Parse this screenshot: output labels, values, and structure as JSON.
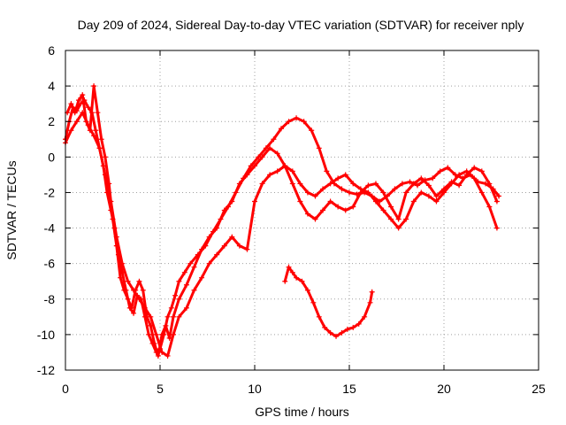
{
  "chart_data": {
    "type": "scatter",
    "title": "Day 209 of 2024, Sidereal Day-to-day VTEC variation (SDTVAR) for receiver nply",
    "xlabel": "GPS time / hours",
    "ylabel": "SDTVAR / TECUs",
    "xlim": [
      0,
      25
    ],
    "ylim": [
      -12,
      6
    ],
    "x_ticks": [
      0,
      5,
      10,
      15,
      20,
      25
    ],
    "x_tick_labels": [
      "0",
      "5",
      "10",
      "15",
      "20",
      "25"
    ],
    "y_ticks": [
      -12,
      -10,
      -8,
      -6,
      -4,
      -2,
      0,
      2,
      4,
      6
    ],
    "y_tick_labels": [
      "-12",
      "-10",
      "-8",
      "-6",
      "-4",
      "-2",
      "0",
      "2",
      "4",
      "6"
    ],
    "grid": true,
    "legend": "none",
    "marker": "+",
    "color": "#ff0000",
    "series": [
      {
        "name": "track-a",
        "x": [
          0.0,
          0.2,
          0.4,
          0.6,
          0.8,
          1.0,
          1.2,
          1.4,
          1.6,
          1.8,
          2.0,
          2.2,
          2.4,
          2.6,
          2.8,
          3.0,
          3.2,
          3.4,
          3.6,
          3.8,
          4.0,
          4.2,
          4.4,
          4.6,
          4.8,
          5.0,
          5.2,
          5.4,
          5.6,
          5.8,
          6.0,
          6.3,
          6.6,
          7.0,
          7.4,
          7.8,
          8.2,
          8.6,
          9.0,
          9.4,
          9.8,
          10.2,
          10.6,
          11.0,
          11.4,
          11.8,
          12.2,
          12.6,
          13.0,
          13.4,
          13.8,
          14.2,
          14.6,
          15.0,
          15.4,
          15.8,
          16.2,
          16.6,
          17.0,
          17.4,
          17.8,
          18.2,
          18.6,
          19.0,
          19.4,
          19.8,
          20.2,
          20.6,
          21.0,
          21.4,
          21.8,
          22.2,
          22.6,
          22.9
        ],
        "y": [
          1.0,
          2.0,
          2.8,
          2.6,
          3.0,
          3.2,
          2.8,
          2.5,
          1.5,
          0.5,
          -0.5,
          -2.0,
          -3.0,
          -4.0,
          -5.5,
          -6.5,
          -7.5,
          -8.5,
          -8.8,
          -7.8,
          -8.0,
          -9.0,
          -10.0,
          -10.5,
          -11.0,
          -10.8,
          -10.0,
          -9.0,
          -8.5,
          -7.8,
          -7.0,
          -6.5,
          -6.0,
          -5.5,
          -5.0,
          -4.2,
          -3.5,
          -2.8,
          -2.0,
          -1.2,
          -0.5,
          0.0,
          0.5,
          1.0,
          1.6,
          2.0,
          2.2,
          2.0,
          1.5,
          0.5,
          -0.8,
          -1.5,
          -1.8,
          -2.0,
          -2.1,
          -2.0,
          -2.2,
          -2.5,
          -2.2,
          -1.8,
          -1.5,
          -1.4,
          -1.6,
          -1.3,
          -1.2,
          -0.8,
          -0.6,
          -1.0,
          -1.2,
          -1.0,
          -1.4,
          -1.5,
          -1.8,
          -2.2
        ]
      },
      {
        "name": "track-b",
        "x": [
          0.1,
          0.3,
          0.5,
          0.7,
          0.9,
          1.1,
          1.3,
          1.5,
          1.7,
          1.9,
          2.1,
          2.3,
          2.5,
          2.7,
          2.9,
          3.1,
          3.3,
          3.5,
          3.7,
          3.9,
          4.1,
          4.3,
          4.5,
          4.7,
          4.9,
          5.1,
          5.3,
          5.5,
          5.7,
          6.0,
          6.4,
          6.8,
          7.2,
          7.6,
          8.0,
          8.4,
          8.8,
          9.2,
          9.6,
          10.0,
          10.4,
          10.8,
          11.2,
          11.6,
          12.0,
          12.4,
          12.8,
          13.2,
          13.6,
          14.0,
          14.4,
          14.8,
          15.2,
          15.6,
          16.0,
          16.4,
          16.8,
          17.2,
          17.6,
          18.0,
          18.4,
          18.8,
          19.2,
          19.6,
          20.0,
          20.4,
          20.8,
          21.2,
          21.6,
          22.0,
          22.4,
          22.8
        ],
        "y": [
          2.5,
          3.0,
          2.5,
          3.2,
          3.5,
          2.0,
          1.5,
          4.0,
          2.5,
          1.0,
          0.0,
          -1.5,
          -3.5,
          -5.0,
          -6.8,
          -7.5,
          -8.0,
          -8.5,
          -7.5,
          -7.0,
          -7.5,
          -9.0,
          -9.5,
          -10.5,
          -11.2,
          -10.0,
          -9.5,
          -10.2,
          -9.0,
          -8.0,
          -7.2,
          -6.2,
          -5.2,
          -4.5,
          -4.0,
          -3.0,
          -2.5,
          -1.5,
          -1.0,
          -0.5,
          0.0,
          0.5,
          0.2,
          -0.5,
          -1.5,
          -2.5,
          -3.2,
          -3.5,
          -3.0,
          -2.5,
          -2.8,
          -3.0,
          -2.8,
          -2.0,
          -1.6,
          -1.5,
          -2.0,
          -2.8,
          -3.5,
          -2.0,
          -1.5,
          -1.2,
          -1.6,
          -2.2,
          -1.8,
          -1.4,
          -1.6,
          -1.0,
          -0.6,
          -0.8,
          -1.5,
          -2.5
        ]
      },
      {
        "name": "track-c",
        "x": [
          0.0,
          0.3,
          0.6,
          0.9,
          1.2,
          1.5,
          1.8,
          2.1,
          2.4,
          2.7,
          3.0,
          3.3,
          3.6,
          3.9,
          4.2,
          4.5,
          4.8,
          5.1,
          5.4,
          5.7,
          6.0,
          6.4,
          6.8,
          7.2,
          7.6,
          8.0,
          8.4,
          8.8,
          9.2,
          9.6,
          10.0,
          10.4,
          10.8,
          11.2,
          11.6,
          12.0,
          12.4,
          12.8,
          13.2,
          13.6,
          14.0,
          14.4,
          14.8,
          15.2,
          15.6,
          16.0,
          16.4,
          16.8,
          17.2,
          17.6,
          18.0,
          18.4,
          18.8,
          19.2,
          19.6,
          20.0,
          20.4,
          20.8,
          21.2,
          21.6,
          22.0,
          22.4,
          22.8
        ],
        "y": [
          0.8,
          1.5,
          2.0,
          2.5,
          1.8,
          1.2,
          0.5,
          -1.0,
          -2.5,
          -4.5,
          -6.0,
          -7.0,
          -7.5,
          -8.0,
          -8.5,
          -9.0,
          -10.0,
          -11.0,
          -11.2,
          -10.0,
          -9.0,
          -8.5,
          -7.5,
          -6.8,
          -6.0,
          -5.5,
          -5.0,
          -4.5,
          -5.0,
          -5.2,
          -2.5,
          -1.5,
          -1.0,
          -0.8,
          -0.5,
          -0.8,
          -1.5,
          -2.0,
          -2.2,
          -1.8,
          -1.5,
          -1.2,
          -1.0,
          -1.5,
          -1.8,
          -2.0,
          -2.5,
          -3.0,
          -3.5,
          -4.0,
          -3.5,
          -2.5,
          -2.0,
          -2.2,
          -2.5,
          -2.0,
          -1.5,
          -1.0,
          -0.8,
          -1.2,
          -2.0,
          -2.8,
          -4.0
        ]
      },
      {
        "name": "track-d",
        "x": [
          11.6,
          11.8,
          12.0,
          12.2,
          12.5,
          12.8,
          13.1,
          13.4,
          13.7,
          14.0,
          14.3,
          14.6,
          14.9,
          15.2,
          15.5,
          15.8,
          16.1,
          16.2
        ],
        "y": [
          -7.0,
          -6.2,
          -6.5,
          -6.8,
          -7.0,
          -7.5,
          -8.2,
          -9.0,
          -9.6,
          -9.9,
          -10.1,
          -9.9,
          -9.7,
          -9.6,
          -9.4,
          -9.0,
          -8.2,
          -7.6
        ]
      }
    ]
  }
}
